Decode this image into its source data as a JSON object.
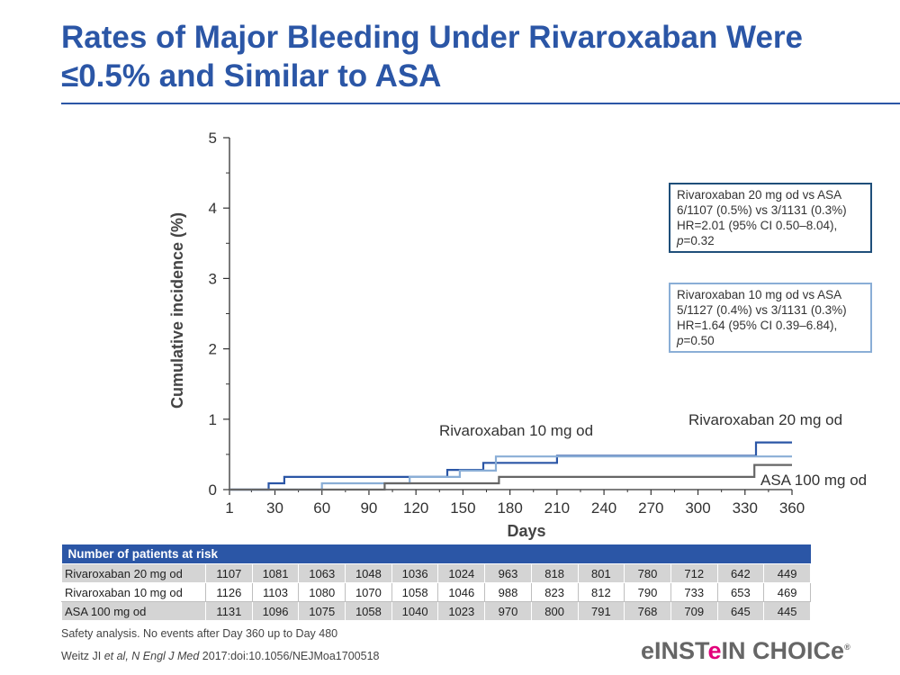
{
  "title": "Rates of Major Bleeding Under Rivaroxaban Were ≤0.5% and Similar to ASA",
  "chart_data": {
    "type": "line",
    "step": true,
    "xlabel": "Days",
    "ylabel": "Cumulative incidence (%)",
    "xticks": [
      1,
      30,
      60,
      90,
      120,
      150,
      180,
      210,
      240,
      270,
      300,
      330,
      360
    ],
    "yticks": [
      0,
      1,
      2,
      3,
      4,
      5
    ],
    "xlim": [
      1,
      360
    ],
    "ylim": [
      0,
      5
    ],
    "series": [
      {
        "name": "Rivaroxaban 20 mg od",
        "color": "#2b56a6",
        "points": [
          [
            1,
            0
          ],
          [
            26,
            0
          ],
          [
            26,
            0.09
          ],
          [
            36,
            0.09
          ],
          [
            36,
            0.18
          ],
          [
            140,
            0.18
          ],
          [
            140,
            0.28
          ],
          [
            163,
            0.28
          ],
          [
            163,
            0.38
          ],
          [
            210,
            0.38
          ],
          [
            210,
            0.48
          ],
          [
            337,
            0.48
          ],
          [
            337,
            0.67
          ],
          [
            360,
            0.67
          ]
        ]
      },
      {
        "name": "Rivaroxaban 10 mg od",
        "color": "#8aaed6",
        "points": [
          [
            1,
            0
          ],
          [
            60,
            0
          ],
          [
            60,
            0.09
          ],
          [
            116,
            0.09
          ],
          [
            116,
            0.18
          ],
          [
            148,
            0.18
          ],
          [
            148,
            0.27
          ],
          [
            171,
            0.27
          ],
          [
            171,
            0.47
          ],
          [
            360,
            0.47
          ]
        ]
      },
      {
        "name": "ASA 100 mg od",
        "color": "#666666",
        "points": [
          [
            1,
            0
          ],
          [
            100,
            0
          ],
          [
            100,
            0.09
          ],
          [
            173,
            0.09
          ],
          [
            173,
            0.18
          ],
          [
            336,
            0.18
          ],
          [
            336,
            0.35
          ],
          [
            360,
            0.35
          ]
        ]
      }
    ],
    "series_labels": [
      "Rivaroxaban 20 mg od",
      "Rivaroxaban 10 mg od",
      "ASA 100 mg od"
    ]
  },
  "stats": {
    "box1": [
      "Rivaroxaban 20 mg od vs ASA",
      "6/1107 (0.5%) vs 3/1131 (0.3%)",
      "HR=2.01 (95% CI 0.50–8.04),",
      "p",
      "=0.32"
    ],
    "box2": [
      "Rivaroxaban 10 mg od vs ASA",
      "5/1127 (0.4%) vs 3/1131 (0.3%)",
      "HR=1.64 (95% CI 0.39–6.84),",
      "p",
      "=0.50"
    ]
  },
  "risk_table": {
    "header": "Number of patients at risk",
    "rows": [
      {
        "label": "Rivaroxaban 20 mg od",
        "values": [
          1107,
          1081,
          1063,
          1048,
          1036,
          1024,
          963,
          818,
          801,
          780,
          712,
          642,
          449
        ]
      },
      {
        "label": "Rivaroxaban 10 mg od",
        "values": [
          1126,
          1103,
          1080,
          1070,
          1058,
          1046,
          988,
          823,
          812,
          790,
          733,
          653,
          469
        ]
      },
      {
        "label": "ASA 100 mg od",
        "values": [
          1131,
          1096,
          1075,
          1058,
          1040,
          1023,
          970,
          800,
          791,
          768,
          709,
          645,
          445
        ]
      }
    ]
  },
  "footnotes": {
    "safety": "Safety analysis. No events after Day 360 up to Day 480",
    "ref_author": "Weitz JI ",
    "ref_italic": "et al, N Engl J Med",
    "ref_rest": " 2017:doi:10.1056/NEJMoa1700518"
  },
  "logo": {
    "pre": "eINST",
    "accent": "e",
    "post": "IN CHOICe",
    "mark": "®"
  }
}
